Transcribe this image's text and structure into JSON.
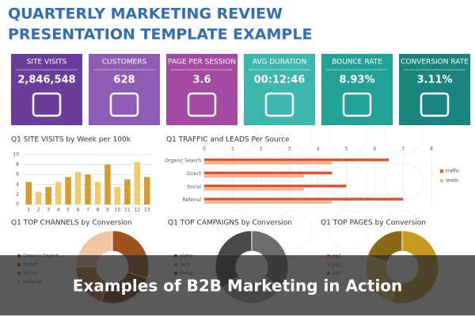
{
  "header": {
    "title_lines": [
      "QUARTERLY MARKETING REVIEW",
      "PRESENTATION TEMPLATE EXAMPLE"
    ],
    "color": "#2f6fb5"
  },
  "kpis": [
    {
      "label": "SITE VISITS",
      "value": "2,846,548",
      "color": "#6a3c9c"
    },
    {
      "label": "CUSTOMERS",
      "value": "628",
      "color": "#8e5bb5"
    },
    {
      "label": "PAGE PER SESSION",
      "value": "3.6",
      "color": "#a54aa3"
    },
    {
      "label": "AVG DURATION",
      "value": "00:12:46",
      "color": "#3db7ad"
    },
    {
      "label": "BOUNCE RATE",
      "value": "8.93%",
      "color": "#22a197"
    },
    {
      "label": "CONVERSION RATE",
      "value": "3.11%",
      "color": "#1a857f"
    }
  ],
  "site_visits": {
    "title": "Q1 SITE VISITS by Week per 100k",
    "categories": [
      "1",
      "2",
      "3",
      "4",
      "5",
      "6",
      "7",
      "8",
      "9",
      "10",
      "11",
      "12",
      "13"
    ],
    "values": [
      4.5,
      2.5,
      3.5,
      4.5,
      5.5,
      6.5,
      6,
      4.5,
      8,
      3.5,
      5,
      8.5,
      5.5
    ],
    "colors": [
      "#d89a2b",
      "#f3c96b"
    ],
    "ylim": [
      0,
      10
    ],
    "yticks": [
      0,
      2,
      4,
      6,
      8,
      10
    ]
  },
  "traffic": {
    "title": "Q1 TRAFFIC and LEADS Per Source",
    "categories": [
      "Organic Search",
      "Direct",
      "Social",
      "Referral"
    ],
    "series": [
      {
        "name": "traffic",
        "color": "#e4532f",
        "values": [
          6.5,
          4.5,
          5,
          7
        ]
      },
      {
        "name": "leads",
        "color": "#f6b38c",
        "values": [
          4.5,
          3.5,
          3.5,
          4.5
        ]
      }
    ],
    "xlim": [
      0,
      8
    ],
    "xticks": [
      0,
      1,
      2,
      3,
      4,
      5,
      6,
      7,
      8
    ]
  },
  "donuts": [
    {
      "title": "Q1 TOP CHANNELS by Conversion",
      "categories": [
        "Organic Search",
        "Direct",
        "Social",
        "Referral"
      ],
      "values": [
        30,
        25,
        20,
        25
      ],
      "colors": [
        "#a0521d",
        "#7a3b12",
        "#c8743a",
        "#f2c4a4"
      ]
    },
    {
      "title": "Q1 TOP CAMPAIGNS by Conversion",
      "categories": [
        "alpha",
        "beta",
        "theta"
      ],
      "values": [
        35,
        30,
        35
      ],
      "colors": [
        "#6d6d6d",
        "#a6a6a6",
        "#4a4a4a"
      ]
    },
    {
      "title": "Q1 TOP PAGES by Conversion",
      "categories": [
        "pg1",
        "pg2",
        "pg3"
      ],
      "values": [
        55,
        25,
        20
      ],
      "colors": [
        "#c9981e",
        "#e8c04a",
        "#8a6a14"
      ]
    }
  ],
  "caption": "Examples of B2B Marketing in Action"
}
